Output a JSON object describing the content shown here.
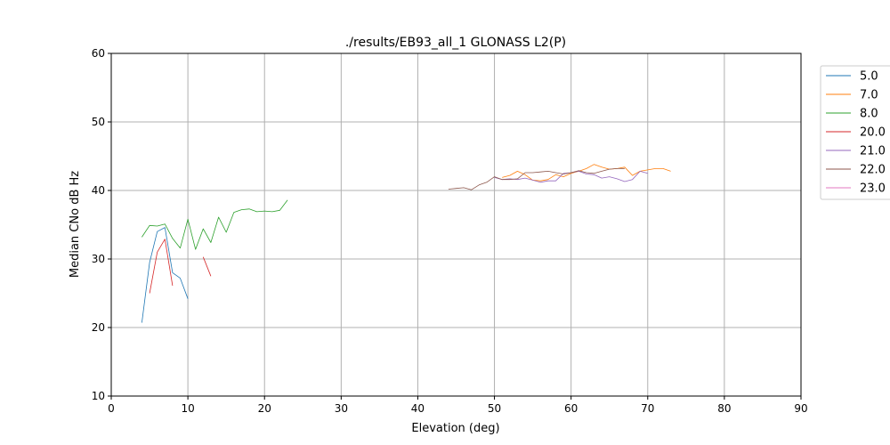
{
  "chart_data": {
    "type": "line",
    "title": "./results/EB93_all_1 GLONASS L2(P)",
    "xlabel": "Elevation (deg)",
    "ylabel": "Median CNo dB Hz",
    "xlim": [
      0,
      90
    ],
    "ylim": [
      10,
      60
    ],
    "xticks": [
      0,
      10,
      20,
      30,
      40,
      50,
      60,
      70,
      80,
      90
    ],
    "yticks": [
      10,
      20,
      30,
      40,
      50,
      60
    ],
    "grid": true,
    "legend_position": "outside-top-right",
    "series": [
      {
        "name": "5.0",
        "color": "#1f77b4",
        "x": [
          4,
          5,
          6,
          7,
          8,
          9,
          10
        ],
        "y": [
          20.7,
          29.5,
          34.0,
          34.6,
          28.0,
          27.2,
          24.2
        ]
      },
      {
        "name": "7.0",
        "color": "#ff7f0e",
        "x": [
          51,
          52,
          53,
          54,
          55,
          56,
          57,
          58,
          59,
          60,
          61,
          62,
          63,
          64,
          65,
          66,
          67,
          68,
          69,
          70,
          71,
          72,
          73
        ],
        "y": [
          41.9,
          42.2,
          42.8,
          42.3,
          41.5,
          41.4,
          41.6,
          42.3,
          42.0,
          42.5,
          42.8,
          43.2,
          43.8,
          43.4,
          43.1,
          43.2,
          43.4,
          42.2,
          42.8,
          43.0,
          43.2,
          43.2,
          42.8
        ]
      },
      {
        "name": "8.0",
        "color": "#2ca02c",
        "x": [
          4,
          5,
          6,
          7,
          8,
          9,
          10,
          11,
          12,
          13,
          14,
          15,
          16,
          17,
          18,
          19,
          20,
          21,
          22,
          23
        ],
        "y": [
          33.2,
          34.9,
          34.8,
          35.1,
          33.0,
          31.6,
          35.8,
          31.4,
          34.4,
          32.4,
          36.1,
          33.9,
          36.8,
          37.2,
          37.3,
          36.9,
          37.0,
          36.9,
          37.1,
          38.6
        ]
      },
      {
        "name": "20.0",
        "color": "#d62728",
        "x": [
          5,
          6,
          7,
          8,
          null,
          12,
          13
        ],
        "y": [
          25.0,
          31.0,
          32.9,
          26.1,
          null,
          30.3,
          27.5
        ]
      },
      {
        "name": "21.0",
        "color": "#9467bd",
        "x": [
          50,
          51,
          52,
          53,
          54,
          55,
          56,
          57,
          58,
          59,
          60,
          61,
          62,
          63,
          64,
          65,
          66,
          67,
          68,
          69,
          70
        ],
        "y": [
          41.9,
          41.6,
          41.7,
          41.6,
          41.8,
          41.5,
          41.2,
          41.4,
          41.4,
          42.5,
          42.6,
          42.8,
          42.4,
          42.3,
          41.8,
          42.0,
          41.7,
          41.3,
          41.6,
          42.8,
          42.5
        ]
      },
      {
        "name": "22.0",
        "color": "#8c564b",
        "x": [
          44,
          45,
          46,
          47,
          48,
          49,
          50,
          51,
          52,
          53,
          54,
          55,
          56,
          57,
          58,
          59,
          60,
          61,
          62,
          63,
          64,
          65,
          66,
          67
        ],
        "y": [
          40.2,
          40.3,
          40.4,
          40.1,
          40.8,
          41.2,
          42.0,
          41.6,
          41.6,
          41.7,
          42.6,
          42.6,
          42.7,
          42.8,
          42.6,
          42.4,
          42.6,
          42.9,
          42.6,
          42.5,
          42.8,
          43.1,
          43.2,
          43.2
        ]
      },
      {
        "name": "23.0",
        "color": "#e377c2",
        "x": [],
        "y": []
      }
    ]
  }
}
